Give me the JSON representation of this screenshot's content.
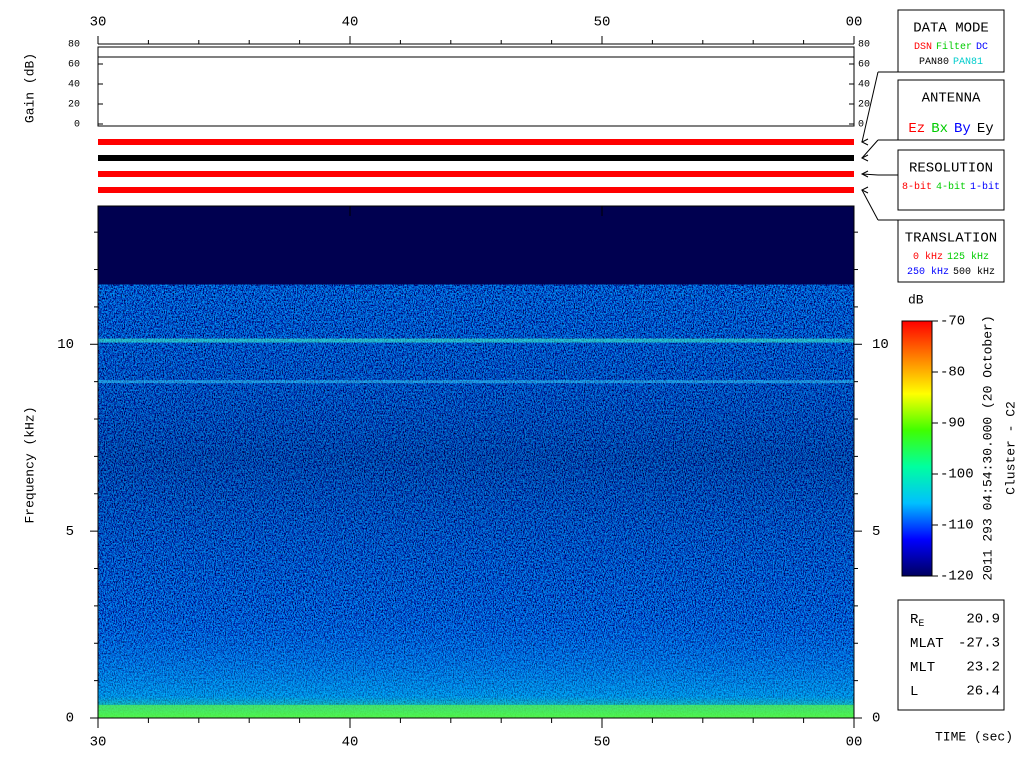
{
  "chart_data": {
    "type": "spectrogram",
    "xlabel": "TIME (sec)",
    "xlim": [
      30,
      60
    ],
    "xticks": [
      30,
      40,
      50,
      {
        "value": 60,
        "label": "00"
      }
    ],
    "xminorticks": [
      32,
      34,
      36,
      38,
      42,
      44,
      46,
      48,
      52,
      54,
      56,
      58
    ],
    "ylabel": "Frequency (kHz)",
    "ylim": [
      0,
      13.7
    ],
    "yticks": [
      0,
      5,
      10
    ],
    "yminorticks": [
      1,
      2,
      3,
      4,
      6,
      7,
      8,
      9,
      11,
      12,
      13
    ],
    "gain": {
      "ylabel": "Gain (dB)",
      "ylim": [
        0,
        80
      ],
      "yticks": [
        0,
        20,
        40,
        60,
        80
      ],
      "x": [
        30,
        60
      ],
      "values": [
        67,
        67
      ],
      "color": "#000000"
    },
    "colorbar": {
      "label": "dB",
      "lim": [
        -120,
        -70
      ],
      "ticks": [
        -70,
        -80,
        -90,
        -100,
        -110,
        -120
      ],
      "colors": [
        "#000060",
        "#0000ff",
        "#00c0ff",
        "#00ffa0",
        "#40ff00",
        "#ffff00",
        "#ff8000",
        "#ff0000"
      ]
    },
    "timestamp": "2011 293 04:54:30.000 (20 October)",
    "spacecraft": "Cluster - C2",
    "panels": [
      {
        "title": "DATA MODE",
        "bar_color": "#ff0000",
        "rows": [
          [
            {
              "text": "DSN",
              "color": "#ff0000"
            },
            {
              "text": "Filter",
              "color": "#00cc00"
            },
            {
              "text": "DC",
              "color": "#0000ff"
            }
          ],
          [
            {
              "text": "PAN80",
              "color": "#000000"
            },
            {
              "text": "PAN81",
              "color": "#00cccc"
            }
          ]
        ]
      },
      {
        "title": "ANTENNA",
        "bar_color": "#000000",
        "rows": [
          [
            {
              "text": "Ez",
              "color": "#ff0000"
            },
            {
              "text": "Bx",
              "color": "#00cc00"
            },
            {
              "text": "By",
              "color": "#0000ff"
            },
            {
              "text": "Ey",
              "color": "#000000"
            }
          ]
        ]
      },
      {
        "title": "RESOLUTION",
        "bar_color": "#ff0000",
        "rows": [
          [
            {
              "text": "8-bit",
              "color": "#ff0000"
            },
            {
              "text": "4-bit",
              "color": "#00cc00"
            },
            {
              "text": "1-bit",
              "color": "#0000ff"
            }
          ]
        ]
      },
      {
        "title": "TRANSLATION",
        "bar_color": "#ff0000",
        "rows": [
          [
            {
              "text": "0 kHz",
              "color": "#ff0000"
            },
            {
              "text": "125 kHz",
              "color": "#00cc00"
            }
          ],
          [
            {
              "text": "250 kHz",
              "color": "#0000ff"
            },
            {
              "text": "500 kHz",
              "color": "#000000"
            }
          ]
        ]
      }
    ],
    "info": [
      {
        "label": "R",
        "sub": "E",
        "value": 20.9
      },
      {
        "label": "MLAT",
        "value": -27.3
      },
      {
        "label": "MLT",
        "value": 23.2
      },
      {
        "label": "L",
        "value": 26.4
      }
    ]
  }
}
